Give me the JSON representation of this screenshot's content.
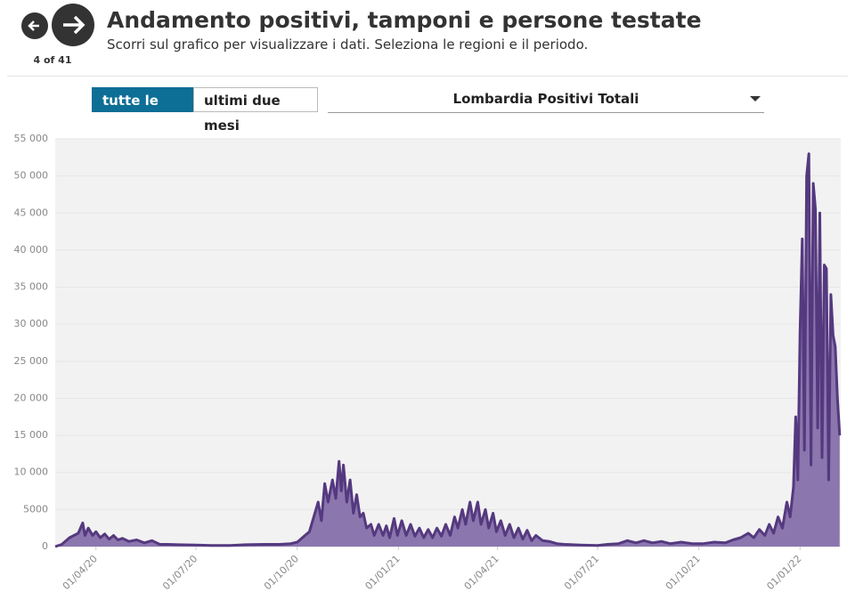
{
  "nav": {
    "counter": "4 of 41"
  },
  "header": {
    "title": "Andamento positivi, tamponi e persone testate",
    "subtitle": "Scorri sul grafico per visualizzare i dati. Seleziona le regioni e il periodo."
  },
  "controls": {
    "buttons": [
      "tutte le date",
      "ultimi due mesi"
    ],
    "dropdown": "Lombardia Positivi Totali"
  },
  "chart_data": {
    "type": "area",
    "color": "#55397f",
    "fill": "#8b76ae",
    "grid": true,
    "xlim": [
      "24/02/20",
      "07/02/22"
    ],
    "xticks": [
      "01/04/20",
      "01/07/20",
      "01/10/20",
      "01/01/21",
      "01/04/21",
      "01/07/21",
      "01/10/21",
      "01/01/22"
    ],
    "ylim": [
      0,
      55000
    ],
    "yticks": [
      0,
      5000,
      {
        "value": 10000,
        "label": "10 000"
      },
      {
        "value": 15000,
        "label": "15 000"
      },
      {
        "value": 20000,
        "label": "20 000"
      },
      {
        "value": 25000,
        "label": "25 000"
      },
      {
        "value": 30000,
        "label": "30 000"
      },
      {
        "value": 35000,
        "label": "35 000"
      },
      {
        "value": 40000,
        "label": "40 000"
      },
      {
        "value": 45000,
        "label": "45 000"
      },
      {
        "value": 50000,
        "label": "50 000"
      },
      {
        "value": 55000,
        "label": "55 000"
      }
    ],
    "x": [
      "24/02/20",
      "01/03/20",
      "08/03/20",
      "12/03/20",
      "16/03/20",
      "20/03/20",
      "22/03/20",
      "25/03/20",
      "29/03/20",
      "01/04/20",
      "05/04/20",
      "09/04/20",
      "13/04/20",
      "17/04/20",
      "21/04/20",
      "25/04/20",
      "01/05/20",
      "08/05/20",
      "15/05/20",
      "22/05/20",
      "29/05/20",
      "05/06/20",
      "15/06/20",
      "01/07/20",
      "15/07/20",
      "01/08/20",
      "15/08/20",
      "01/09/20",
      "15/09/20",
      "25/09/20",
      "01/10/20",
      "08/10/20",
      "12/10/20",
      "16/10/20",
      "20/10/20",
      "23/10/20",
      "26/10/20",
      "29/10/20",
      "02/11/20",
      "05/11/20",
      "08/11/20",
      "10/11/20",
      "12/11/20",
      "15/11/20",
      "18/11/20",
      "21/11/20",
      "24/11/20",
      "27/11/20",
      "30/11/20",
      "03/12/20",
      "07/12/20",
      "10/12/20",
      "14/12/20",
      "18/12/20",
      "21/12/20",
      "24/12/20",
      "28/12/20",
      "31/12/20",
      "04/01/21",
      "08/01/21",
      "12/01/21",
      "16/01/21",
      "20/01/21",
      "24/01/21",
      "28/01/21",
      "01/02/21",
      "05/02/21",
      "09/02/21",
      "13/02/21",
      "17/02/21",
      "21/02/21",
      "24/02/21",
      "28/02/21",
      "03/03/21",
      "07/03/21",
      "10/03/21",
      "14/03/21",
      "17/03/21",
      "21/03/21",
      "24/03/21",
      "28/03/21",
      "31/03/21",
      "04/04/21",
      "08/04/21",
      "12/04/21",
      "16/04/21",
      "20/04/21",
      "24/04/21",
      "28/04/21",
      "02/05/21",
      "06/05/21",
      "12/05/21",
      "18/05/21",
      "25/05/21",
      "01/06/21",
      "15/06/21",
      "01/07/21",
      "10/07/21",
      "20/07/21",
      "28/07/21",
      "05/08/21",
      "12/08/21",
      "20/08/21",
      "28/08/21",
      "05/09/21",
      "15/09/21",
      "25/09/21",
      "05/10/21",
      "15/10/21",
      "25/10/21",
      "01/11/21",
      "08/11/21",
      "15/11/21",
      "20/11/21",
      "25/11/21",
      "30/11/21",
      "04/12/21",
      "08/12/21",
      "12/12/21",
      "16/12/21",
      "20/12/21",
      "23/12/21",
      "26/12/21",
      "28/12/21",
      "30/12/21",
      "01/01/22",
      "03/01/22",
      "05/01/22",
      "07/01/22",
      "09/01/22",
      "11/01/22",
      "13/01/22",
      "15/01/22",
      "17/01/22",
      "19/01/22",
      "21/01/22",
      "23/01/22",
      "25/01/22",
      "27/01/22",
      "29/01/22",
      "31/01/22",
      "02/02/22",
      "04/02/22",
      "06/02/22"
    ],
    "values": [
      0,
      300,
      1200,
      1500,
      1800,
      3200,
      1500,
      2500,
      1500,
      2000,
      1200,
      1700,
      1000,
      1500,
      900,
      1100,
      700,
      900,
      500,
      800,
      300,
      300,
      250,
      200,
      150,
      150,
      250,
      300,
      300,
      400,
      600,
      1500,
      2000,
      4000,
      6000,
      3500,
      8500,
      6000,
      9000,
      6500,
      11500,
      7500,
      11000,
      6000,
      9000,
      4500,
      7000,
      4000,
      4500,
      2500,
      3000,
      1500,
      3000,
      1500,
      2800,
      1200,
      3800,
      1500,
      3500,
      1500,
      3000,
      1400,
      2500,
      1200,
      2300,
      1200,
      2500,
      1400,
      3000,
      1500,
      4000,
      2500,
      5000,
      3000,
      6000,
      3500,
      6000,
      3000,
      5000,
      2500,
      4500,
      2000,
      3500,
      1500,
      3000,
      1200,
      2500,
      1000,
      2200,
      800,
      1500,
      800,
      700,
      400,
      300,
      200,
      150,
      300,
      400,
      800,
      500,
      800,
      500,
      700,
      400,
      600,
      400,
      400,
      600,
      500,
      900,
      1200,
      1800,
      1200,
      2300,
      1500,
      3000,
      1800,
      4000,
      2500,
      6000,
      4000,
      8000,
      17500,
      9000,
      29000,
      41500,
      13000,
      50000,
      53000,
      11000,
      49000,
      45500,
      16000,
      45000,
      12000,
      38000,
      37500,
      9000,
      34000,
      28500,
      27000,
      20000,
      15000
    ]
  }
}
